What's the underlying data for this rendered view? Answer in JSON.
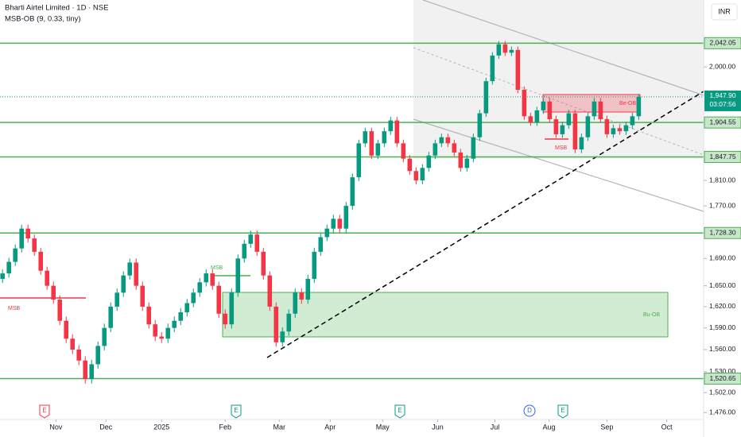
{
  "chart_data": {
    "type": "candlestick",
    "title": "Bharti Airtel Limited · 1D · NSE",
    "indicator": "MSB-OB (9, 0.33, tiny)",
    "currency": "INR",
    "log_scale": true,
    "grid": false,
    "up_color": "#089981",
    "down_color": "#f23645",
    "xlim": [
      -0.4,
      110.2
    ],
    "xticks": [
      {
        "value": 8.4,
        "label": "Nov"
      },
      {
        "value": 16.25,
        "label": "Dec"
      },
      {
        "value": 25,
        "label": "2025"
      },
      {
        "value": 35,
        "label": "Feb"
      },
      {
        "value": 43.5,
        "label": "Mar"
      },
      {
        "value": 51.5,
        "label": "Apr"
      },
      {
        "value": 59.75,
        "label": "May"
      },
      {
        "value": 68.4,
        "label": "Jun"
      },
      {
        "value": 77.4,
        "label": "Jul"
      },
      {
        "value": 85.9,
        "label": "Aug"
      },
      {
        "value": 95,
        "label": "Sep"
      },
      {
        "value": 104.4,
        "label": "Oct"
      }
    ],
    "ylim": [
      1467,
      2121
    ],
    "yticks": [
      {
        "value": 2000,
        "label": "2,000.00"
      },
      {
        "value": 1810,
        "label": "1,810.00"
      },
      {
        "value": 1770,
        "label": "1,770.00"
      },
      {
        "value": 1690,
        "label": "1,690.00"
      },
      {
        "value": 1650,
        "label": "1,650.00"
      },
      {
        "value": 1620,
        "label": "1,620.00"
      },
      {
        "value": 1590,
        "label": "1,590.00"
      },
      {
        "value": 1560,
        "label": "1,560.00"
      },
      {
        "value": 1530,
        "label": "1,530.00"
      },
      {
        "value": 1502,
        "label": "1,502.00"
      },
      {
        "value": 1476,
        "label": "1,476.00"
      }
    ],
    "level_color": "#4caf50",
    "levels": [
      {
        "value": 2042.05,
        "label": "2,042.05"
      },
      {
        "value": 1904.55,
        "label": "1,904.55"
      },
      {
        "value": 1847.75,
        "label": "1,847.75"
      },
      {
        "value": 1728.3,
        "label": "1,728.30"
      },
      {
        "value": 1520.65,
        "label": "1,520.65"
      }
    ],
    "last_price": {
      "value": 1947.9,
      "label": "1,947.90"
    },
    "countdown": "03:07:56",
    "annotations": [
      "MSB",
      "MSB",
      "MSB",
      "Bu-OB",
      "Be-OB"
    ],
    "events": [
      "E",
      "E",
      "E",
      "D",
      "E"
    ],
    "series": {
      "open": [
        1660,
        1668,
        1685,
        1705,
        1735,
        1720,
        1700,
        1672,
        1650,
        1630,
        1600,
        1575,
        1560,
        1545,
        1520,
        1540,
        1565,
        1590,
        1620,
        1640,
        1665,
        1684,
        1650,
        1620,
        1595,
        1578,
        1575,
        1590,
        1600,
        1612,
        1625,
        1640,
        1655,
        1668,
        1650,
        1610,
        1595,
        1640,
        1690,
        1712,
        1726,
        1700,
        1665,
        1620,
        1570,
        1585,
        1610,
        1640,
        1630,
        1660,
        1700,
        1722,
        1735,
        1750,
        1735,
        1770,
        1815,
        1870,
        1890,
        1850,
        1870,
        1890,
        1908,
        1870,
        1845,
        1825,
        1810,
        1830,
        1850,
        1870,
        1880,
        1870,
        1855,
        1830,
        1845,
        1880,
        1920,
        1975,
        2020,
        2040,
        2025,
        2030,
        1960,
        1915,
        1905,
        1925,
        1940,
        1910,
        1885,
        1900,
        1920,
        1860,
        1880,
        1915,
        1940,
        1910,
        1885,
        1895,
        1890,
        1900,
        1915
      ],
      "high": [
        1674,
        1691,
        1711,
        1741,
        1741,
        1726,
        1706,
        1678,
        1656,
        1636,
        1606,
        1581,
        1566,
        1551,
        1546,
        1571,
        1596,
        1626,
        1646,
        1671,
        1690,
        1690,
        1656,
        1626,
        1601,
        1584,
        1596,
        1606,
        1618,
        1631,
        1646,
        1661,
        1674,
        1674,
        1656,
        1616,
        1646,
        1696,
        1718,
        1732,
        1732,
        1706,
        1671,
        1626,
        1591,
        1616,
        1646,
        1646,
        1666,
        1706,
        1728,
        1741,
        1756,
        1756,
        1776,
        1821,
        1876,
        1896,
        1896,
        1876,
        1896,
        1914,
        1914,
        1876,
        1851,
        1831,
        1836,
        1856,
        1876,
        1886,
        1886,
        1876,
        1861,
        1851,
        1886,
        1926,
        1981,
        2026,
        2046,
        2046,
        2036,
        2036,
        1966,
        1921,
        1931,
        1946,
        1946,
        1916,
        1906,
        1926,
        1926,
        1886,
        1921,
        1946,
        1946,
        1916,
        1901,
        1901,
        1906,
        1921,
        1953
      ],
      "low": [
        1654,
        1662,
        1679,
        1699,
        1714,
        1694,
        1666,
        1644,
        1624,
        1594,
        1569,
        1554,
        1539,
        1514,
        1514,
        1534,
        1559,
        1584,
        1614,
        1634,
        1659,
        1644,
        1614,
        1589,
        1572,
        1569,
        1569,
        1584,
        1594,
        1606,
        1619,
        1634,
        1649,
        1644,
        1604,
        1589,
        1589,
        1634,
        1684,
        1706,
        1694,
        1659,
        1614,
        1564,
        1564,
        1579,
        1604,
        1624,
        1624,
        1654,
        1694,
        1716,
        1729,
        1729,
        1729,
        1764,
        1809,
        1864,
        1844,
        1844,
        1864,
        1884,
        1864,
        1839,
        1819,
        1804,
        1804,
        1824,
        1844,
        1864,
        1864,
        1849,
        1824,
        1824,
        1839,
        1874,
        1914,
        1969,
        2014,
        2019,
        2019,
        1954,
        1909,
        1899,
        1899,
        1919,
        1904,
        1879,
        1879,
        1894,
        1854,
        1854,
        1874,
        1909,
        1904,
        1879,
        1879,
        1884,
        1884,
        1894,
        1909
      ],
      "close": [
        1668,
        1685,
        1705,
        1735,
        1720,
        1700,
        1672,
        1650,
        1630,
        1600,
        1575,
        1560,
        1545,
        1520,
        1540,
        1565,
        1590,
        1620,
        1640,
        1665,
        1684,
        1650,
        1620,
        1595,
        1578,
        1575,
        1590,
        1600,
        1612,
        1625,
        1640,
        1655,
        1668,
        1650,
        1610,
        1595,
        1640,
        1690,
        1712,
        1726,
        1700,
        1665,
        1620,
        1570,
        1585,
        1610,
        1640,
        1630,
        1660,
        1700,
        1722,
        1735,
        1750,
        1735,
        1770,
        1815,
        1870,
        1890,
        1850,
        1870,
        1890,
        1908,
        1870,
        1845,
        1825,
        1810,
        1830,
        1850,
        1870,
        1880,
        1870,
        1855,
        1830,
        1845,
        1880,
        1920,
        1975,
        2020,
        2040,
        2025,
        2030,
        1960,
        1915,
        1905,
        1925,
        1940,
        1910,
        1885,
        1900,
        1920,
        1860,
        1880,
        1915,
        1940,
        1910,
        1885,
        1895,
        1890,
        1900,
        1915,
        1947.9
      ]
    }
  }
}
